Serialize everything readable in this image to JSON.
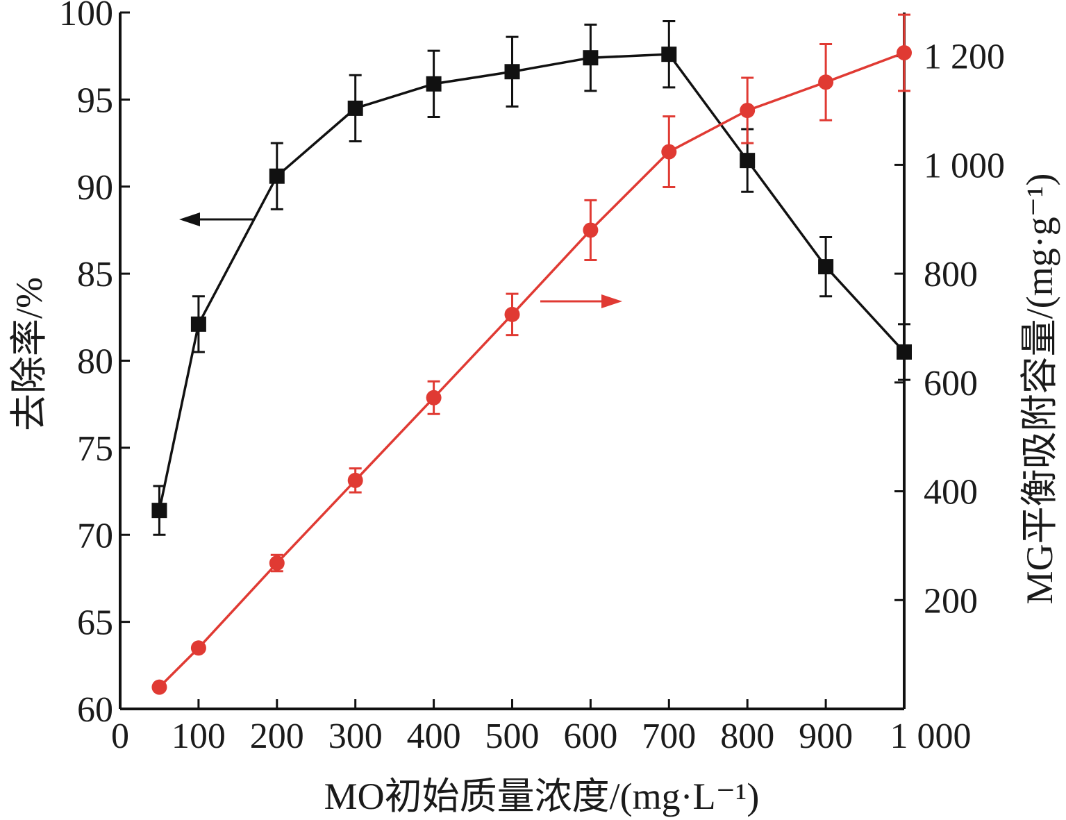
{
  "chart_data": {
    "type": "line",
    "x_axis": {
      "label": "MO初始质量浓度/(mg·L⁻¹)",
      "range": [
        0,
        1000
      ],
      "ticks": [
        0,
        100,
        200,
        300,
        400,
        500,
        600,
        700,
        800,
        900,
        1000
      ],
      "tick_labels": [
        "0",
        "100",
        "200",
        "300",
        "400",
        "500",
        "600",
        "700",
        "800",
        "900",
        "1 000"
      ]
    },
    "y_left": {
      "label": "去除率/%",
      "range": [
        60,
        100
      ],
      "ticks": [
        60,
        65,
        70,
        75,
        80,
        85,
        90,
        95,
        100
      ],
      "tick_labels": [
        "60",
        "65",
        "70",
        "75",
        "80",
        "85",
        "90",
        "95",
        "100"
      ]
    },
    "y_right": {
      "label": "MG平衡吸附容量/(mg·g⁻¹)",
      "range": [
        0,
        1280
      ],
      "ticks": [
        200,
        400,
        600,
        800,
        1000,
        1200
      ],
      "tick_labels": [
        "200",
        "400",
        "600",
        "800",
        "1 000",
        "1 200"
      ]
    },
    "series": [
      {
        "axis": "left",
        "marker": "square",
        "color": "#111111",
        "x": [
          50,
          100,
          200,
          300,
          400,
          500,
          600,
          700,
          800,
          900,
          1000
        ],
        "y": [
          71.4,
          82.1,
          90.6,
          94.5,
          95.9,
          96.6,
          97.4,
          97.6,
          91.5,
          85.4,
          80.5
        ],
        "error": [
          1.4,
          1.6,
          1.9,
          1.9,
          1.9,
          2.0,
          1.9,
          1.9,
          1.8,
          1.7,
          1.6
        ]
      },
      {
        "axis": "right",
        "marker": "circle",
        "color": "#e03a33",
        "x": [
          50,
          100,
          200,
          300,
          400,
          500,
          600,
          700,
          800,
          900,
          1000
        ],
        "y": [
          40,
          112,
          268,
          420,
          572,
          725,
          880,
          1024,
          1100,
          1152,
          1206
        ],
        "error": [
          0,
          0,
          15,
          22,
          30,
          38,
          55,
          65,
          60,
          70,
          70
        ]
      }
    ],
    "annotations": [
      {
        "type": "arrow",
        "points_to": "left-axis",
        "color": "#111111"
      },
      {
        "type": "arrow",
        "points_to": "right-axis",
        "color": "#e03a33"
      }
    ],
    "grid": false,
    "legend": "none"
  }
}
